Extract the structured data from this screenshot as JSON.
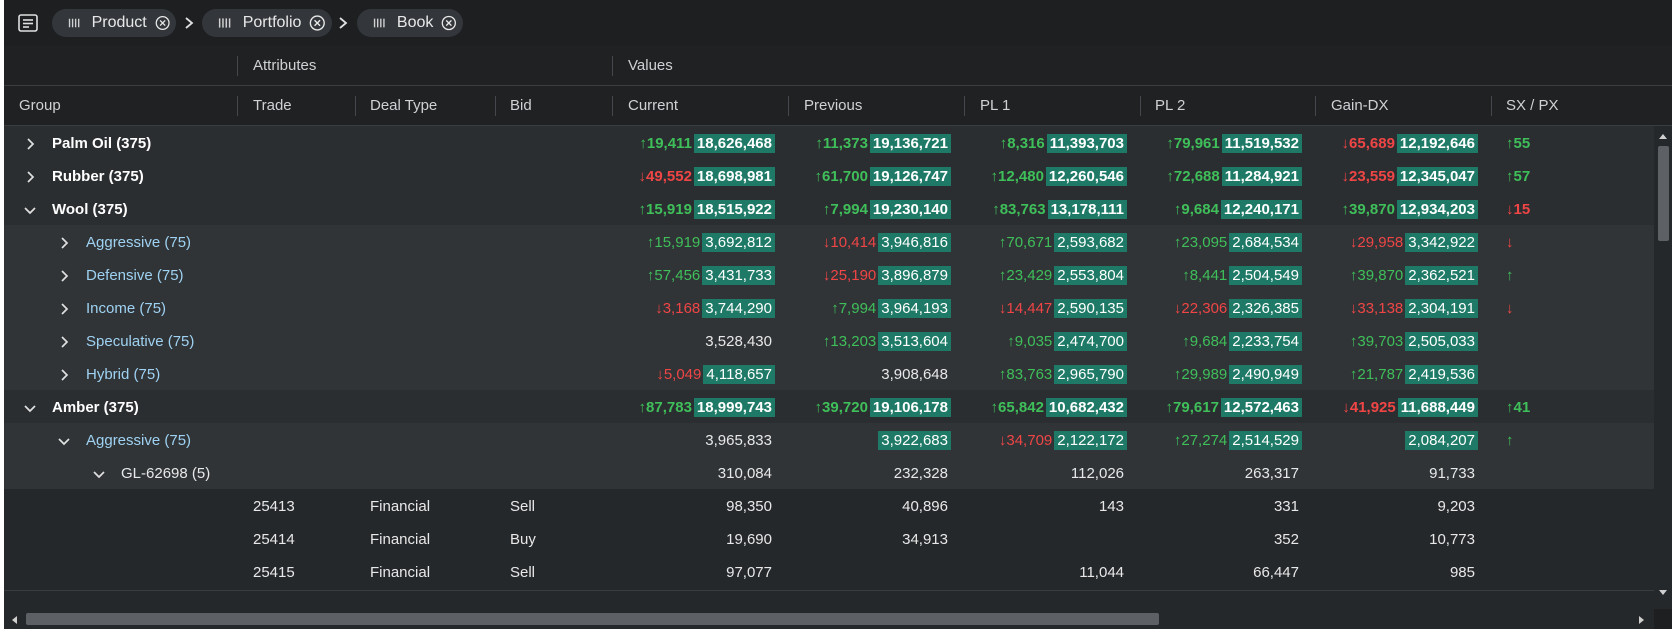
{
  "colors": {
    "accent_highlight": "#1e7a66",
    "up": "#3fbf5a",
    "down": "#ef4545",
    "child_group_text": "#9fd2f2",
    "background": "#25282b"
  },
  "toolbar": {
    "menu_icon": "table-menu-icon",
    "chips": [
      {
        "label": "Product",
        "icon": "grip-icon",
        "remove_icon": "remove-circle-icon"
      },
      {
        "label": "Portfolio",
        "icon": "grip-icon",
        "remove_icon": "remove-circle-icon"
      },
      {
        "label": "Book",
        "icon": "grip-icon",
        "remove_icon": "remove-circle-icon"
      }
    ],
    "separator_icon": "chevron-right-icon"
  },
  "header_groups": {
    "attributes": "Attributes",
    "values": "Values"
  },
  "columns": {
    "group": "Group",
    "trade": "Trade",
    "deal_type": "Deal Type",
    "bid": "Bid",
    "current": "Current",
    "previous": "Previous",
    "pl1": "PL 1",
    "pl2": "PL 2",
    "gain_dx": "Gain-DX",
    "sx_px": "SX / PX"
  },
  "rows": [
    {
      "level": 0,
      "expand": "chevron-right-icon",
      "label": "Palm Oil (375)",
      "current": {
        "dir": "up",
        "delta": "19,411",
        "value": "18,626,468",
        "hl": true
      },
      "previous": {
        "dir": "up",
        "delta": "11,373",
        "value": "19,136,721",
        "hl": true
      },
      "pl1": {
        "dir": "up",
        "delta": "8,316",
        "value": "11,393,703",
        "hl": true
      },
      "pl2": {
        "dir": "up",
        "delta": "79,961",
        "value": "11,519,532",
        "hl": true
      },
      "gain": {
        "dir": "down",
        "delta": "65,689",
        "value": "12,192,646",
        "hl": true
      },
      "sx": {
        "dir": "up",
        "delta": "55"
      }
    },
    {
      "level": 0,
      "expand": "chevron-right-icon",
      "label": "Rubber (375)",
      "current": {
        "dir": "down",
        "delta": "49,552",
        "value": "18,698,981",
        "hl": true
      },
      "previous": {
        "dir": "up",
        "delta": "61,700",
        "value": "19,126,747",
        "hl": true
      },
      "pl1": {
        "dir": "up",
        "delta": "12,480",
        "value": "12,260,546",
        "hl": true
      },
      "pl2": {
        "dir": "up",
        "delta": "72,688",
        "value": "11,284,921",
        "hl": true
      },
      "gain": {
        "dir": "down",
        "delta": "23,559",
        "value": "12,345,047",
        "hl": true
      },
      "sx": {
        "dir": "up",
        "delta": "57"
      }
    },
    {
      "level": 0,
      "expand": "chevron-down-icon",
      "label": "Wool (375)",
      "current": {
        "dir": "up",
        "delta": "15,919",
        "value": "18,515,922",
        "hl": true
      },
      "previous": {
        "dir": "up",
        "delta": "7,994",
        "value": "19,230,140",
        "hl": true
      },
      "pl1": {
        "dir": "up",
        "delta": "83,763",
        "value": "13,178,111",
        "hl": true
      },
      "pl2": {
        "dir": "up",
        "delta": "9,684",
        "value": "12,240,171",
        "hl": true
      },
      "gain": {
        "dir": "up",
        "delta": "39,870",
        "value": "12,934,203",
        "hl": true
      },
      "sx": {
        "dir": "down",
        "delta": "15"
      }
    },
    {
      "level": 1,
      "expand": "chevron-right-icon",
      "label": "Aggressive (75)",
      "current": {
        "dir": "up",
        "delta": "15,919",
        "value": "3,692,812",
        "hl": true
      },
      "previous": {
        "dir": "down",
        "delta": "10,414",
        "value": "3,946,816",
        "hl": true
      },
      "pl1": {
        "dir": "up",
        "delta": "70,671",
        "value": "2,593,682",
        "hl": true
      },
      "pl2": {
        "dir": "up",
        "delta": "23,095",
        "value": "2,684,534",
        "hl": true
      },
      "gain": {
        "dir": "down",
        "delta": "29,958",
        "value": "3,342,922",
        "hl": true
      },
      "sx": {
        "dir": "down",
        "delta": ""
      }
    },
    {
      "level": 1,
      "expand": "chevron-right-icon",
      "label": "Defensive (75)",
      "current": {
        "dir": "up",
        "delta": "57,456",
        "value": "3,431,733",
        "hl": true
      },
      "previous": {
        "dir": "down",
        "delta": "25,190",
        "value": "3,896,879",
        "hl": true
      },
      "pl1": {
        "dir": "up",
        "delta": "23,429",
        "value": "2,553,804",
        "hl": true
      },
      "pl2": {
        "dir": "up",
        "delta": "8,441",
        "value": "2,504,549",
        "hl": true
      },
      "gain": {
        "dir": "up",
        "delta": "39,870",
        "value": "2,362,521",
        "hl": true
      },
      "sx": {
        "dir": "up",
        "delta": ""
      }
    },
    {
      "level": 1,
      "expand": "chevron-right-icon",
      "label": "Income (75)",
      "current": {
        "dir": "down",
        "delta": "3,168",
        "value": "3,744,290",
        "hl": true
      },
      "previous": {
        "dir": "up",
        "delta": "7,994",
        "value": "3,964,193",
        "hl": true
      },
      "pl1": {
        "dir": "down",
        "delta": "14,447",
        "value": "2,590,135",
        "hl": true
      },
      "pl2": {
        "dir": "down",
        "delta": "22,306",
        "value": "2,326,385",
        "hl": true
      },
      "gain": {
        "dir": "down",
        "delta": "33,138",
        "value": "2,304,191",
        "hl": true
      },
      "sx": {
        "dir": "down",
        "delta": ""
      }
    },
    {
      "level": 1,
      "expand": "chevron-right-icon",
      "label": "Speculative (75)",
      "current": {
        "dir": "",
        "delta": "",
        "value": "3,528,430",
        "hl": false
      },
      "previous": {
        "dir": "up",
        "delta": "13,203",
        "value": "3,513,604",
        "hl": true
      },
      "pl1": {
        "dir": "up",
        "delta": "9,035",
        "value": "2,474,700",
        "hl": true
      },
      "pl2": {
        "dir": "up",
        "delta": "9,684",
        "value": "2,233,754",
        "hl": true
      },
      "gain": {
        "dir": "up",
        "delta": "39,703",
        "value": "2,505,033",
        "hl": true
      },
      "sx": {
        "dir": "",
        "delta": ""
      }
    },
    {
      "level": 1,
      "expand": "chevron-right-icon",
      "label": "Hybrid (75)",
      "current": {
        "dir": "down",
        "delta": "5,049",
        "value": "4,118,657",
        "hl": true
      },
      "previous": {
        "dir": "",
        "delta": "",
        "value": "3,908,648",
        "hl": false
      },
      "pl1": {
        "dir": "up",
        "delta": "83,763",
        "value": "2,965,790",
        "hl": true
      },
      "pl2": {
        "dir": "up",
        "delta": "29,989",
        "value": "2,490,949",
        "hl": true
      },
      "gain": {
        "dir": "up",
        "delta": "21,787",
        "value": "2,419,536",
        "hl": true
      },
      "sx": {
        "dir": "",
        "delta": ""
      }
    },
    {
      "level": 0,
      "expand": "chevron-down-icon",
      "label": "Amber (375)",
      "current": {
        "dir": "up",
        "delta": "87,783",
        "value": "18,999,743",
        "hl": true
      },
      "previous": {
        "dir": "up",
        "delta": "39,720",
        "value": "19,106,178",
        "hl": true
      },
      "pl1": {
        "dir": "up",
        "delta": "65,842",
        "value": "10,682,432",
        "hl": true
      },
      "pl2": {
        "dir": "up",
        "delta": "79,617",
        "value": "12,572,463",
        "hl": true
      },
      "gain": {
        "dir": "down",
        "delta": "41,925",
        "value": "11,688,449",
        "hl": true
      },
      "sx": {
        "dir": "up",
        "delta": "41"
      }
    },
    {
      "level": 1,
      "expand": "chevron-down-icon",
      "label": "Aggressive (75)",
      "current": {
        "dir": "",
        "delta": "",
        "value": "3,965,833",
        "hl": false
      },
      "previous": {
        "dir": "",
        "delta": "",
        "value": "3,922,683",
        "hl": true
      },
      "pl1": {
        "dir": "down",
        "delta": "34,709",
        "value": "2,122,172",
        "hl": true
      },
      "pl2": {
        "dir": "up",
        "delta": "27,274",
        "value": "2,514,529",
        "hl": true
      },
      "gain": {
        "dir": "",
        "delta": "",
        "value": "2,084,207",
        "hl": true
      },
      "sx": {
        "dir": "up",
        "delta": ""
      }
    },
    {
      "level": 2,
      "expand": "chevron-down-icon",
      "label": "GL-62698 (5)",
      "current": {
        "dir": "",
        "delta": "",
        "value": "310,084",
        "hl": false
      },
      "previous": {
        "dir": "",
        "delta": "",
        "value": "232,328",
        "hl": false
      },
      "pl1": {
        "dir": "",
        "delta": "",
        "value": "112,026",
        "hl": false
      },
      "pl2": {
        "dir": "",
        "delta": "",
        "value": "263,317",
        "hl": false
      },
      "gain": {
        "dir": "",
        "delta": "",
        "value": "91,733",
        "hl": false
      },
      "sx": {
        "dir": "",
        "delta": ""
      }
    },
    {
      "level": 3,
      "trade": "25413",
      "deal_type": "Financial",
      "bid": "Sell",
      "current": {
        "dir": "",
        "delta": "",
        "value": "98,350",
        "hl": false
      },
      "previous": {
        "dir": "",
        "delta": "",
        "value": "40,896",
        "hl": false
      },
      "pl1": {
        "dir": "",
        "delta": "",
        "value": "143",
        "hl": false
      },
      "pl2": {
        "dir": "",
        "delta": "",
        "value": "331",
        "hl": false
      },
      "gain": {
        "dir": "",
        "delta": "",
        "value": "9,203",
        "hl": false
      },
      "sx": {
        "dir": "",
        "delta": ""
      }
    },
    {
      "level": 3,
      "trade": "25414",
      "deal_type": "Financial",
      "bid": "Buy",
      "current": {
        "dir": "",
        "delta": "",
        "value": "19,690",
        "hl": false
      },
      "previous": {
        "dir": "",
        "delta": "",
        "value": "34,913",
        "hl": false
      },
      "pl1": {
        "dir": "",
        "delta": "",
        "value": "",
        "hl": false
      },
      "pl2": {
        "dir": "",
        "delta": "",
        "value": "352",
        "hl": false
      },
      "gain": {
        "dir": "",
        "delta": "",
        "value": "10,773",
        "hl": false
      },
      "sx": {
        "dir": "",
        "delta": ""
      }
    },
    {
      "level": 3,
      "trade": "25415",
      "deal_type": "Financial",
      "bid": "Sell",
      "current": {
        "dir": "",
        "delta": "",
        "value": "97,077",
        "hl": false
      },
      "previous": {
        "dir": "",
        "delta": "",
        "value": "",
        "hl": false
      },
      "pl1": {
        "dir": "",
        "delta": "",
        "value": "11,044",
        "hl": false
      },
      "pl2": {
        "dir": "",
        "delta": "",
        "value": "66,447",
        "hl": false
      },
      "gain": {
        "dir": "",
        "delta": "",
        "value": "985",
        "hl": false
      },
      "sx": {
        "dir": "",
        "delta": ""
      }
    }
  ]
}
